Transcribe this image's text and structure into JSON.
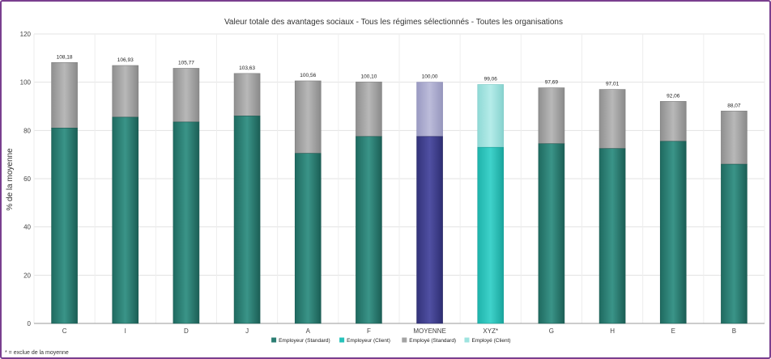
{
  "chart_data": {
    "type": "bar",
    "stacked": true,
    "title": "Valeur totale des avantages sociaux - Tous les régimes sélectionnés - Toutes les organisations",
    "ylabel": "% de la moyenne",
    "ylim": [
      0,
      120
    ],
    "yticks": [
      0,
      20,
      40,
      60,
      80,
      100,
      120
    ],
    "grid": true,
    "legend_position": "bottom",
    "categories": [
      "C",
      "I",
      "D",
      "J",
      "A",
      "F",
      "MOYENNE",
      "XYZ*",
      "G",
      "H",
      "E",
      "B"
    ],
    "totals_labels": [
      "108,18",
      "106,93",
      "105,77",
      "103,63",
      "100,56",
      "100,10",
      "100,00",
      "99,06",
      "97,69",
      "97,01",
      "92,06",
      "88,07"
    ],
    "totals": [
      108.18,
      106.93,
      105.77,
      103.63,
      100.56,
      100.1,
      100.0,
      99.06,
      97.69,
      97.01,
      92.06,
      88.07
    ],
    "employer": [
      81,
      85.5,
      83.5,
      86,
      70.5,
      77.5,
      77.5,
      73,
      74.5,
      72.5,
      75.5,
      66
    ],
    "bar_style": [
      "standard",
      "standard",
      "standard",
      "standard",
      "standard",
      "standard",
      "average",
      "client",
      "standard",
      "standard",
      "standard",
      "standard"
    ],
    "series": [
      {
        "name": "Employeur (Standard)",
        "color": "#2a7d72"
      },
      {
        "name": "Employeur (Client)",
        "color": "#26c2ba"
      },
      {
        "name": "Employé (Standard)",
        "color": "#a3a3a3"
      },
      {
        "name": "Employé (Client)",
        "color": "#9ee3df"
      }
    ],
    "average_colors": {
      "employer": "#3d3d8c",
      "employee": "#a9a9cc"
    }
  },
  "footnote": "* = exclue de la moyenne"
}
